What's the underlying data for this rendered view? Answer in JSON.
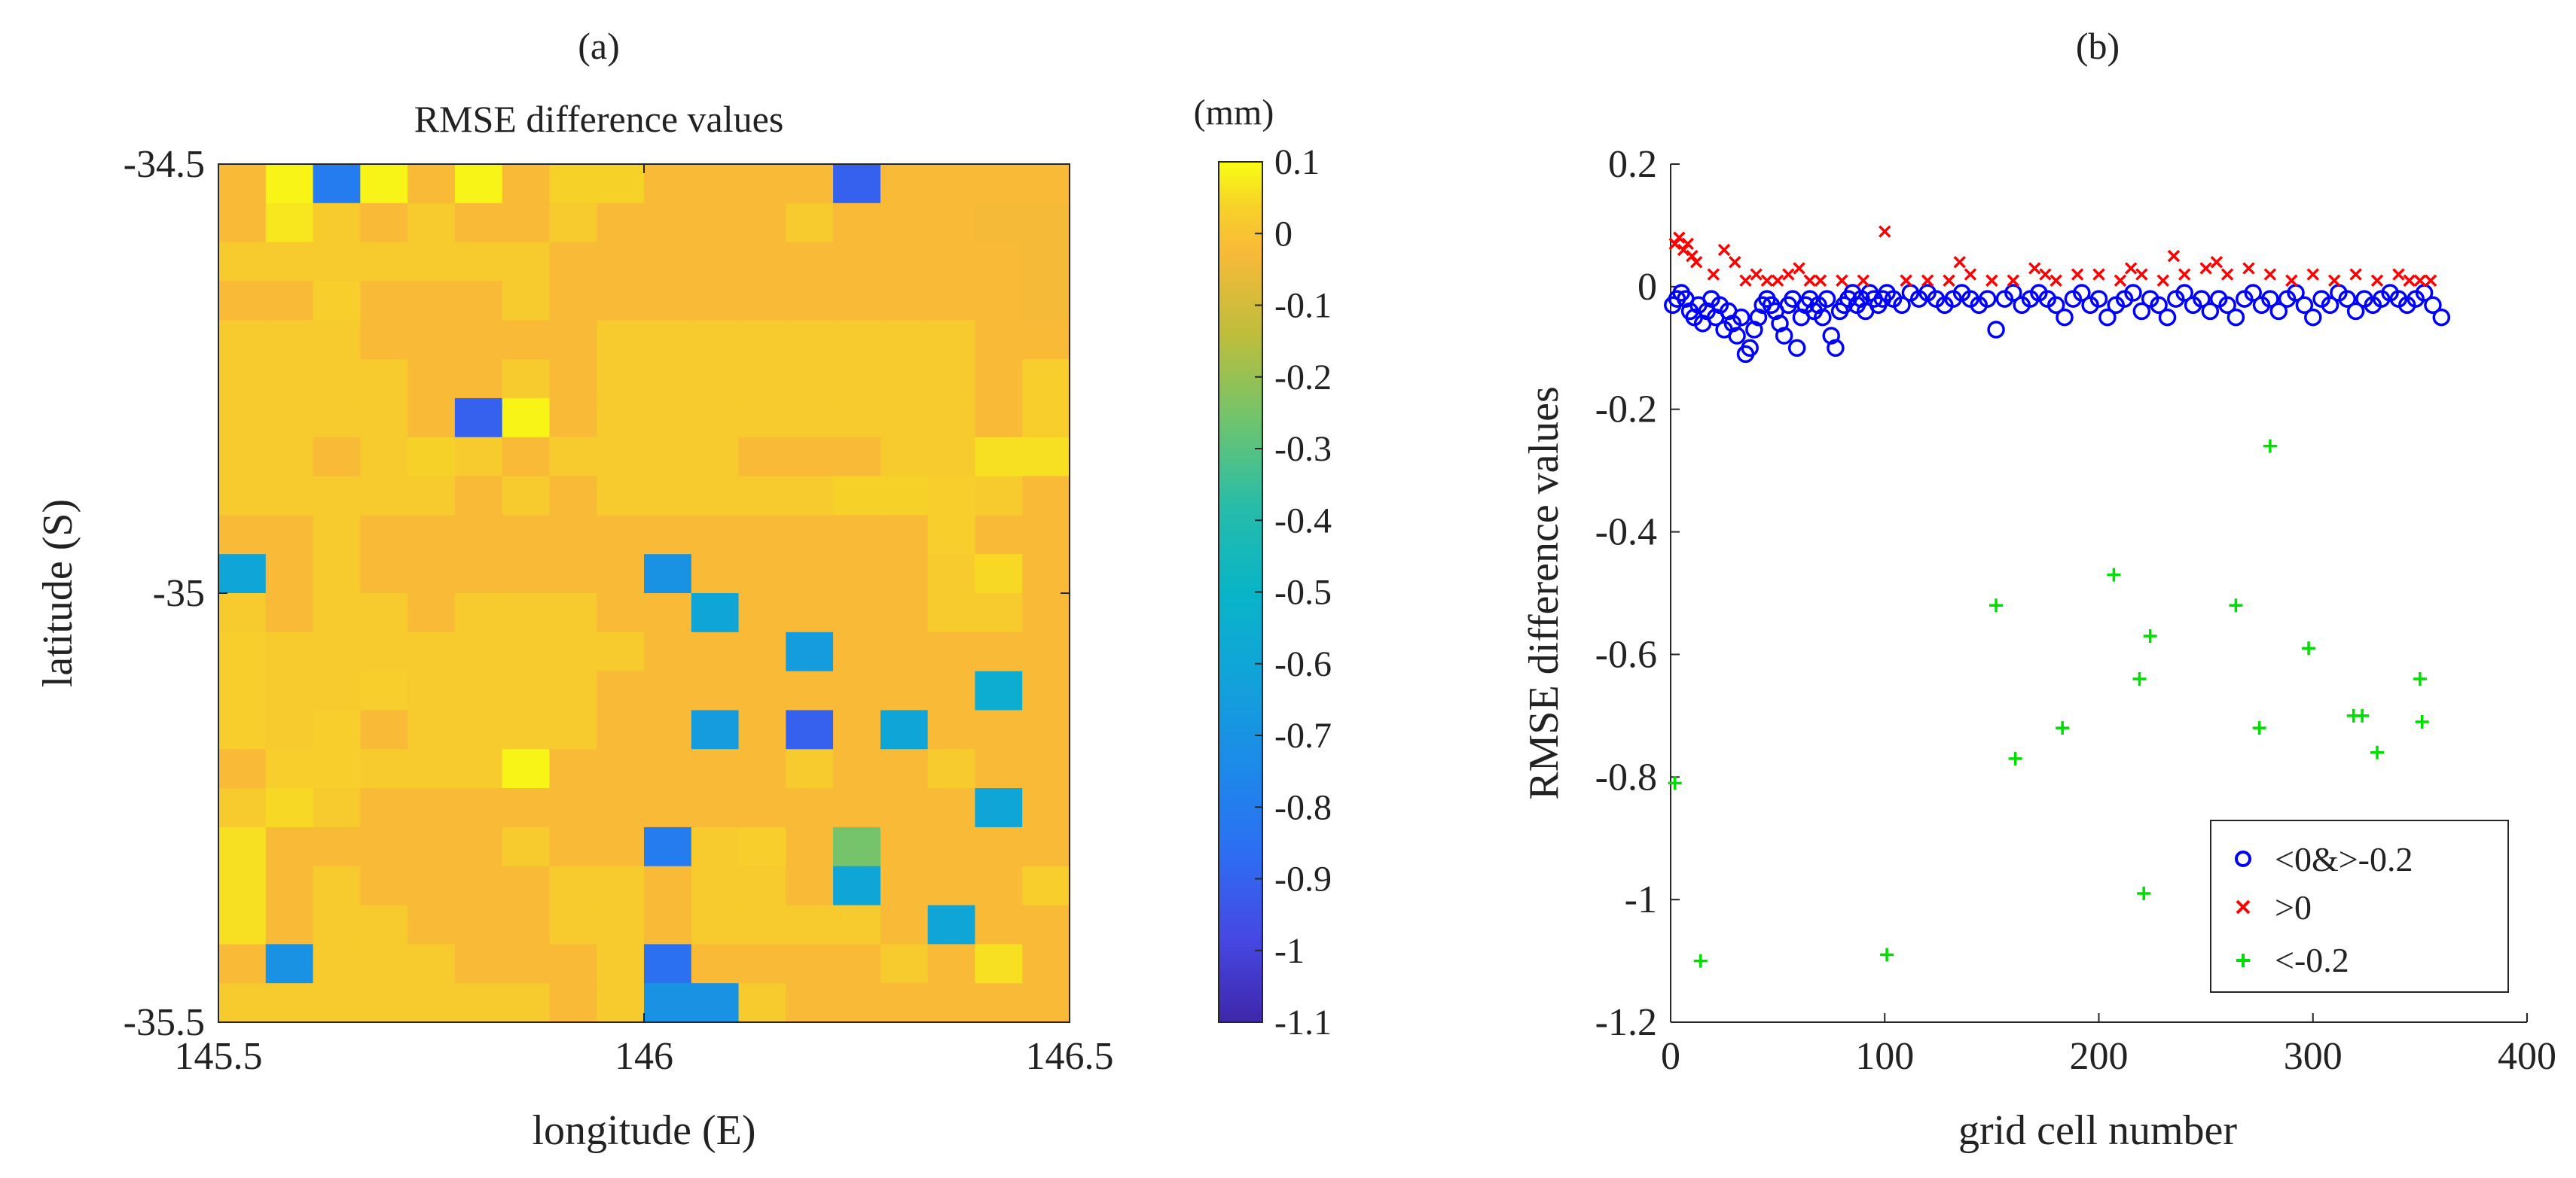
{
  "chart_data": [
    {
      "type": "heatmap",
      "panel_label": "(a)",
      "title": "RMSE difference values",
      "xlabel": "longitude (E)",
      "ylabel": "latitude (S)",
      "xlim": [
        145.5,
        146.5
      ],
      "ylim": [
        -35.5,
        -34.5
      ],
      "x_ticks": [
        145.5,
        146,
        146.5
      ],
      "x_tick_labels": [
        "145.5",
        "146",
        "146.5"
      ],
      "y_ticks": [
        -34.5,
        -35,
        -35.5
      ],
      "y_tick_labels": [
        "-34.5",
        "-35",
        "-35.5"
      ],
      "colorbar": {
        "unit": "(mm)",
        "range": [
          -1.1,
          0.1
        ],
        "ticks": [
          0.1,
          0,
          -0.1,
          -0.2,
          -0.3,
          -0.4,
          -0.5,
          -0.6,
          -0.7,
          -0.8,
          -0.9,
          -1,
          -1.1
        ],
        "tick_labels": [
          "0.1",
          "0",
          "-0.1",
          "-0.2",
          "-0.3",
          "-0.4",
          "-0.5",
          "-0.6",
          "-0.7",
          "-0.8",
          "-0.9",
          "-1",
          "-1.1"
        ]
      },
      "grid_rows_top_to_bottom": [
        [
          -0.02,
          0.09,
          -0.8,
          0.09,
          -0.02,
          0.09,
          -0.02,
          0.04,
          0.04,
          -0.02,
          -0.02,
          -0.02,
          -0.02,
          -0.9,
          -0.02,
          -0.02,
          -0.02,
          -0.02
        ],
        [
          -0.02,
          0.07,
          0.02,
          -0.02,
          0.02,
          -0.02,
          -0.02,
          0.02,
          -0.02,
          -0.02,
          -0.02,
          -0.02,
          0.02,
          -0.02,
          -0.02,
          -0.02,
          -0.03,
          -0.03
        ],
        [
          0.02,
          0.02,
          0.02,
          0.02,
          0.02,
          0.02,
          0.02,
          -0.02,
          -0.02,
          -0.02,
          -0.02,
          -0.02,
          -0.02,
          -0.02,
          -0.02,
          -0.02,
          -0.02,
          -0.03
        ],
        [
          -0.02,
          -0.02,
          0.03,
          -0.02,
          -0.02,
          -0.02,
          0.02,
          -0.02,
          -0.02,
          -0.02,
          -0.02,
          -0.02,
          -0.02,
          -0.02,
          -0.02,
          -0.02,
          -0.02,
          -0.03
        ],
        [
          0.02,
          0.02,
          0.02,
          -0.02,
          -0.02,
          -0.02,
          -0.02,
          -0.02,
          0.02,
          0.02,
          0.02,
          0.02,
          0.02,
          0.02,
          0.02,
          0.02,
          -0.02,
          -0.02
        ],
        [
          0.02,
          0.02,
          0.02,
          0.02,
          -0.02,
          -0.02,
          0.02,
          -0.02,
          0.02,
          0.02,
          0.02,
          0.02,
          0.02,
          0.02,
          0.02,
          0.02,
          -0.02,
          0.03
        ],
        [
          0.02,
          0.02,
          0.02,
          0.02,
          -0.02,
          -0.9,
          0.09,
          -0.02,
          0.02,
          0.02,
          0.02,
          0.02,
          0.02,
          0.02,
          0.02,
          0.02,
          -0.02,
          0.03
        ],
        [
          0.02,
          0.02,
          -0.02,
          0.02,
          0.04,
          0.02,
          -0.02,
          0.02,
          0.02,
          0.02,
          0.02,
          -0.02,
          -0.02,
          -0.02,
          0.02,
          0.02,
          0.06,
          0.06
        ],
        [
          0.02,
          0.02,
          0.02,
          0.02,
          0.02,
          -0.02,
          0.02,
          -0.02,
          0.02,
          0.02,
          0.02,
          0.02,
          0.02,
          0.04,
          0.04,
          0.03,
          0.02,
          -0.02
        ],
        [
          -0.02,
          -0.02,
          0.02,
          -0.02,
          -0.02,
          -0.02,
          -0.02,
          -0.02,
          -0.02,
          -0.02,
          -0.02,
          -0.02,
          -0.02,
          -0.02,
          -0.02,
          0.03,
          -0.02,
          -0.02
        ],
        [
          -0.6,
          -0.02,
          0.02,
          -0.02,
          -0.02,
          -0.02,
          -0.02,
          -0.02,
          -0.02,
          -0.7,
          -0.02,
          -0.02,
          -0.02,
          -0.02,
          -0.02,
          0.02,
          0.05,
          -0.02
        ],
        [
          0.02,
          -0.02,
          0.02,
          0.02,
          -0.02,
          0.02,
          0.02,
          0.02,
          -0.02,
          -0.02,
          -0.6,
          -0.02,
          -0.02,
          -0.02,
          -0.02,
          0.02,
          0.02,
          -0.02
        ],
        [
          0.03,
          0.02,
          0.02,
          0.02,
          0.02,
          0.02,
          0.02,
          0.02,
          0.02,
          -0.02,
          -0.02,
          -0.02,
          -0.65,
          -0.02,
          -0.02,
          -0.02,
          -0.02,
          -0.02
        ],
        [
          0.03,
          0.02,
          0.02,
          0.03,
          0.02,
          0.02,
          0.02,
          0.02,
          -0.02,
          -0.02,
          -0.02,
          -0.02,
          -0.02,
          -0.02,
          -0.02,
          -0.02,
          -0.55,
          -0.02
        ],
        [
          0.03,
          0.02,
          0.03,
          -0.02,
          0.02,
          0.02,
          0.02,
          0.02,
          -0.02,
          -0.02,
          -0.65,
          -0.02,
          -0.9,
          -0.02,
          -0.6,
          -0.02,
          -0.02,
          -0.02
        ],
        [
          -0.02,
          0.03,
          0.03,
          0.02,
          0.02,
          0.02,
          0.09,
          -0.02,
          -0.02,
          -0.02,
          -0.02,
          -0.02,
          0.02,
          -0.02,
          -0.02,
          0.02,
          -0.02,
          -0.02
        ],
        [
          0.02,
          0.05,
          0.02,
          -0.02,
          -0.02,
          -0.02,
          -0.02,
          -0.02,
          -0.02,
          -0.02,
          -0.02,
          -0.02,
          -0.02,
          -0.02,
          -0.02,
          -0.02,
          -0.6,
          -0.02
        ],
        [
          0.06,
          -0.02,
          -0.02,
          -0.02,
          -0.02,
          -0.02,
          0.02,
          -0.02,
          -0.02,
          -0.8,
          0.02,
          0.03,
          -0.02,
          -0.25,
          -0.02,
          -0.02,
          -0.02,
          -0.02
        ],
        [
          0.06,
          -0.02,
          0.02,
          -0.02,
          -0.02,
          -0.02,
          -0.02,
          0.02,
          0.02,
          -0.02,
          0.02,
          0.02,
          -0.02,
          -0.6,
          -0.02,
          -0.02,
          -0.02,
          0.03
        ],
        [
          0.06,
          -0.02,
          0.02,
          0.02,
          -0.02,
          -0.02,
          -0.02,
          0.02,
          0.02,
          -0.02,
          0.02,
          0.02,
          0.02,
          0.02,
          -0.02,
          -0.6,
          -0.02,
          -0.02
        ],
        [
          -0.02,
          -0.7,
          0.02,
          0.02,
          0.02,
          -0.02,
          -0.02,
          -0.02,
          0.02,
          -0.85,
          -0.02,
          -0.02,
          -0.02,
          -0.02,
          0.02,
          -0.02,
          0.06,
          -0.02
        ],
        [
          0.02,
          0.02,
          0.02,
          0.02,
          0.02,
          0.02,
          0.02,
          -0.02,
          0.02,
          -0.7,
          -0.7,
          0.02,
          -0.02,
          -0.02,
          -0.02,
          -0.02,
          -0.02,
          -0.02
        ]
      ]
    },
    {
      "type": "scatter",
      "panel_label": "(b)",
      "xlabel": "grid cell number",
      "ylabel": "RMSE difference values",
      "xlim": [
        0,
        400
      ],
      "ylim": [
        -1.2,
        0.2
      ],
      "x_ticks": [
        0,
        100,
        200,
        300,
        400
      ],
      "x_tick_labels": [
        "0",
        "100",
        "200",
        "300",
        "400"
      ],
      "y_ticks": [
        0.2,
        0,
        -0.2,
        -0.4,
        -0.6,
        -0.8,
        -1,
        -1.2
      ],
      "y_tick_labels": [
        "0.2",
        "0",
        "-0.2",
        "-0.4",
        "-0.6",
        "-0.8",
        "-1",
        "-1.2"
      ],
      "legend_position": "bottom-right",
      "series": [
        {
          "name": "<0&>-0.2",
          "marker": "circle",
          "color": "#0000ff",
          "x": [
            1,
            3,
            5,
            7,
            9,
            11,
            13,
            15,
            17,
            19,
            21,
            23,
            25,
            27,
            29,
            31,
            33,
            35,
            37,
            39,
            41,
            43,
            45,
            47,
            49,
            51,
            53,
            55,
            57,
            59,
            61,
            63,
            65,
            67,
            69,
            71,
            73,
            75,
            77,
            79,
            81,
            83,
            85,
            87,
            89,
            91,
            93,
            95,
            97,
            99,
            101,
            104,
            108,
            112,
            116,
            120,
            124,
            128,
            132,
            136,
            140,
            144,
            148,
            152,
            156,
            160,
            164,
            168,
            172,
            176,
            180,
            184,
            188,
            192,
            196,
            200,
            204,
            208,
            212,
            216,
            220,
            224,
            228,
            232,
            236,
            240,
            244,
            248,
            252,
            256,
            260,
            264,
            268,
            272,
            276,
            280,
            284,
            288,
            292,
            296,
            300,
            304,
            308,
            312,
            316,
            320,
            324,
            328,
            332,
            336,
            340,
            344,
            348,
            352,
            356,
            360
          ],
          "y": [
            -0.03,
            -0.02,
            -0.01,
            -0.02,
            -0.04,
            -0.05,
            -0.03,
            -0.06,
            -0.04,
            -0.02,
            -0.05,
            -0.03,
            -0.07,
            -0.04,
            -0.06,
            -0.08,
            -0.05,
            -0.11,
            -0.1,
            -0.07,
            -0.05,
            -0.03,
            -0.02,
            -0.03,
            -0.04,
            -0.06,
            -0.08,
            -0.03,
            -0.02,
            -0.1,
            -0.05,
            -0.03,
            -0.02,
            -0.04,
            -0.03,
            -0.05,
            -0.02,
            -0.08,
            -0.1,
            -0.04,
            -0.03,
            -0.02,
            -0.01,
            -0.03,
            -0.02,
            -0.04,
            -0.01,
            -0.02,
            -0.03,
            -0.02,
            -0.01,
            -0.02,
            -0.03,
            -0.01,
            -0.02,
            -0.01,
            -0.02,
            -0.03,
            -0.02,
            -0.01,
            -0.02,
            -0.03,
            -0.02,
            -0.07,
            -0.02,
            -0.01,
            -0.03,
            -0.02,
            -0.01,
            -0.02,
            -0.03,
            -0.05,
            -0.02,
            -0.01,
            -0.03,
            -0.02,
            -0.05,
            -0.03,
            -0.02,
            -0.01,
            -0.04,
            -0.02,
            -0.03,
            -0.05,
            -0.02,
            -0.01,
            -0.03,
            -0.02,
            -0.04,
            -0.02,
            -0.03,
            -0.05,
            -0.02,
            -0.01,
            -0.03,
            -0.02,
            -0.04,
            -0.02,
            -0.01,
            -0.03,
            -0.05,
            -0.02,
            -0.03,
            -0.01,
            -0.02,
            -0.04,
            -0.02,
            -0.03,
            -0.02,
            -0.01,
            -0.02,
            -0.03,
            -0.02,
            -0.01,
            -0.03,
            -0.05
          ]
        },
        {
          "name": ">0",
          "marker": "x",
          "color": "#ff0000",
          "x": [
            2,
            4,
            6,
            8,
            10,
            12,
            20,
            25,
            30,
            35,
            40,
            45,
            50,
            55,
            60,
            65,
            70,
            80,
            90,
            100,
            110,
            120,
            130,
            135,
            140,
            150,
            160,
            170,
            175,
            180,
            190,
            200,
            210,
            215,
            220,
            230,
            235,
            240,
            250,
            255,
            260,
            270,
            280,
            290,
            300,
            310,
            320,
            330,
            340,
            345,
            350,
            355
          ],
          "y": [
            0.07,
            0.08,
            0.06,
            0.07,
            0.05,
            0.04,
            0.02,
            0.06,
            0.04,
            0.01,
            0.02,
            0.01,
            0.01,
            0.02,
            0.03,
            0.01,
            0.01,
            0.01,
            0.01,
            0.09,
            0.01,
            0.01,
            0.01,
            0.04,
            0.02,
            0.01,
            0.01,
            0.03,
            0.02,
            0.01,
            0.02,
            0.02,
            0.01,
            0.03,
            0.02,
            0.01,
            0.05,
            0.02,
            0.03,
            0.04,
            0.02,
            0.03,
            0.02,
            0.01,
            0.02,
            0.01,
            0.02,
            0.01,
            0.02,
            0.01,
            0.01,
            0.01
          ]
        },
        {
          "name": "<-0.2",
          "marker": "plus",
          "color": "#00dd00",
          "x": [
            2,
            14,
            101,
            152,
            161,
            183,
            207,
            219,
            221,
            224,
            264,
            275,
            280,
            298,
            319,
            323,
            330,
            350,
            351
          ],
          "y": [
            -0.81,
            -1.1,
            -1.09,
            -0.52,
            -0.77,
            -0.72,
            -0.47,
            -0.64,
            -0.99,
            -0.57,
            -0.52,
            -0.72,
            -0.26,
            -0.59,
            -0.7,
            -0.7,
            -0.76,
            -0.64,
            -0.71
          ]
        }
      ]
    }
  ]
}
